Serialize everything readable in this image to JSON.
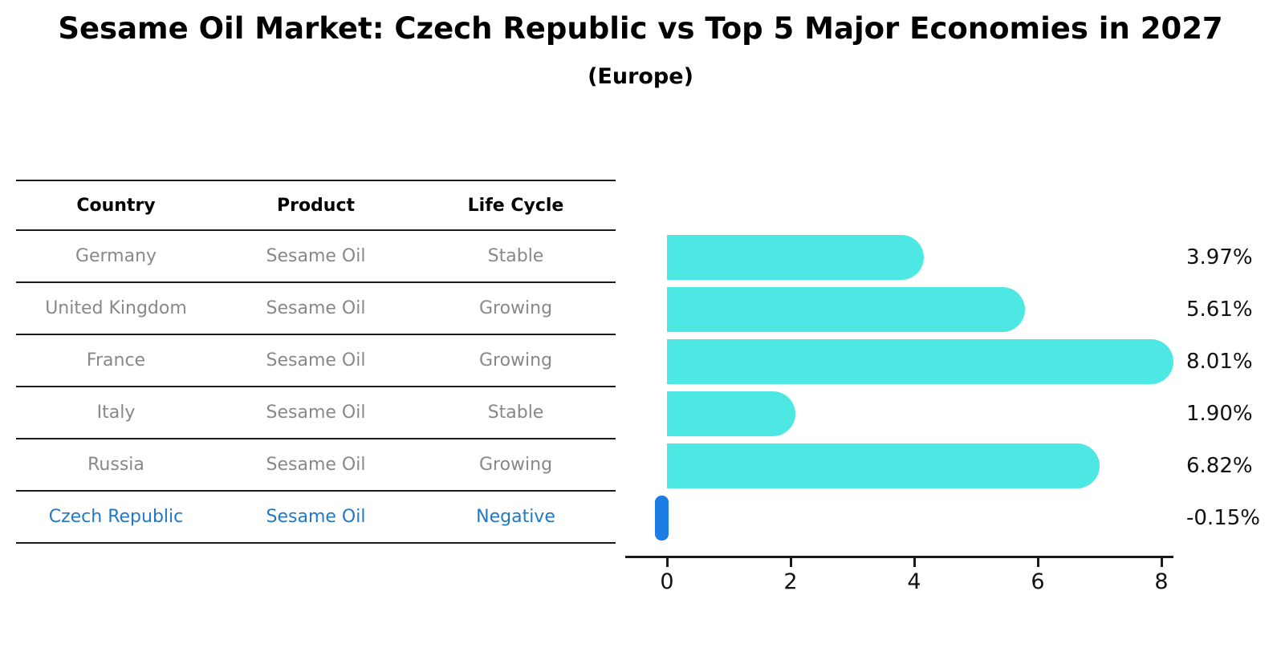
{
  "title": "Sesame Oil Market: Czech Republic vs Top 5 Major Economies in 2027",
  "subtitle": "(Europe)",
  "colors": {
    "bar_positive": "#4DE8E4",
    "bar_negative": "#1B7CE6",
    "highlight_text": "#2278C5",
    "row_text": "#888888",
    "line": "#1a1a1a"
  },
  "table": {
    "headers": [
      "Country",
      "Product",
      "Life Cycle"
    ],
    "rows": [
      {
        "country": "Germany",
        "product": "Sesame Oil",
        "life_cycle": "Stable",
        "highlight": false
      },
      {
        "country": "United Kingdom",
        "product": "Sesame Oil",
        "life_cycle": "Growing",
        "highlight": false
      },
      {
        "country": "France",
        "product": "Sesame Oil",
        "life_cycle": "Growing",
        "highlight": false
      },
      {
        "country": "Italy",
        "product": "Sesame Oil",
        "life_cycle": "Stable",
        "highlight": false
      },
      {
        "country": "Russia",
        "product": "Sesame Oil",
        "life_cycle": "Growing",
        "highlight": false
      },
      {
        "country": "Czech Republic",
        "product": "Sesame Oil",
        "life_cycle": "Negative",
        "highlight": true
      }
    ]
  },
  "chart_data": {
    "type": "bar",
    "orientation": "horizontal",
    "categories": [
      "Germany",
      "United Kingdom",
      "France",
      "Italy",
      "Russia",
      "Czech Republic"
    ],
    "values": [
      3.97,
      5.61,
      8.01,
      1.9,
      6.82,
      -0.15
    ],
    "value_labels": [
      "3.97%",
      "5.61%",
      "8.01%",
      "1.90%",
      "6.82%",
      "-0.15%"
    ],
    "xticks": [
      0,
      2,
      4,
      6,
      8
    ],
    "xlim": [
      -0.7,
      8.2
    ],
    "grid": false,
    "legend": false,
    "highlight_index": 5,
    "title": "",
    "xlabel": "",
    "ylabel": ""
  }
}
